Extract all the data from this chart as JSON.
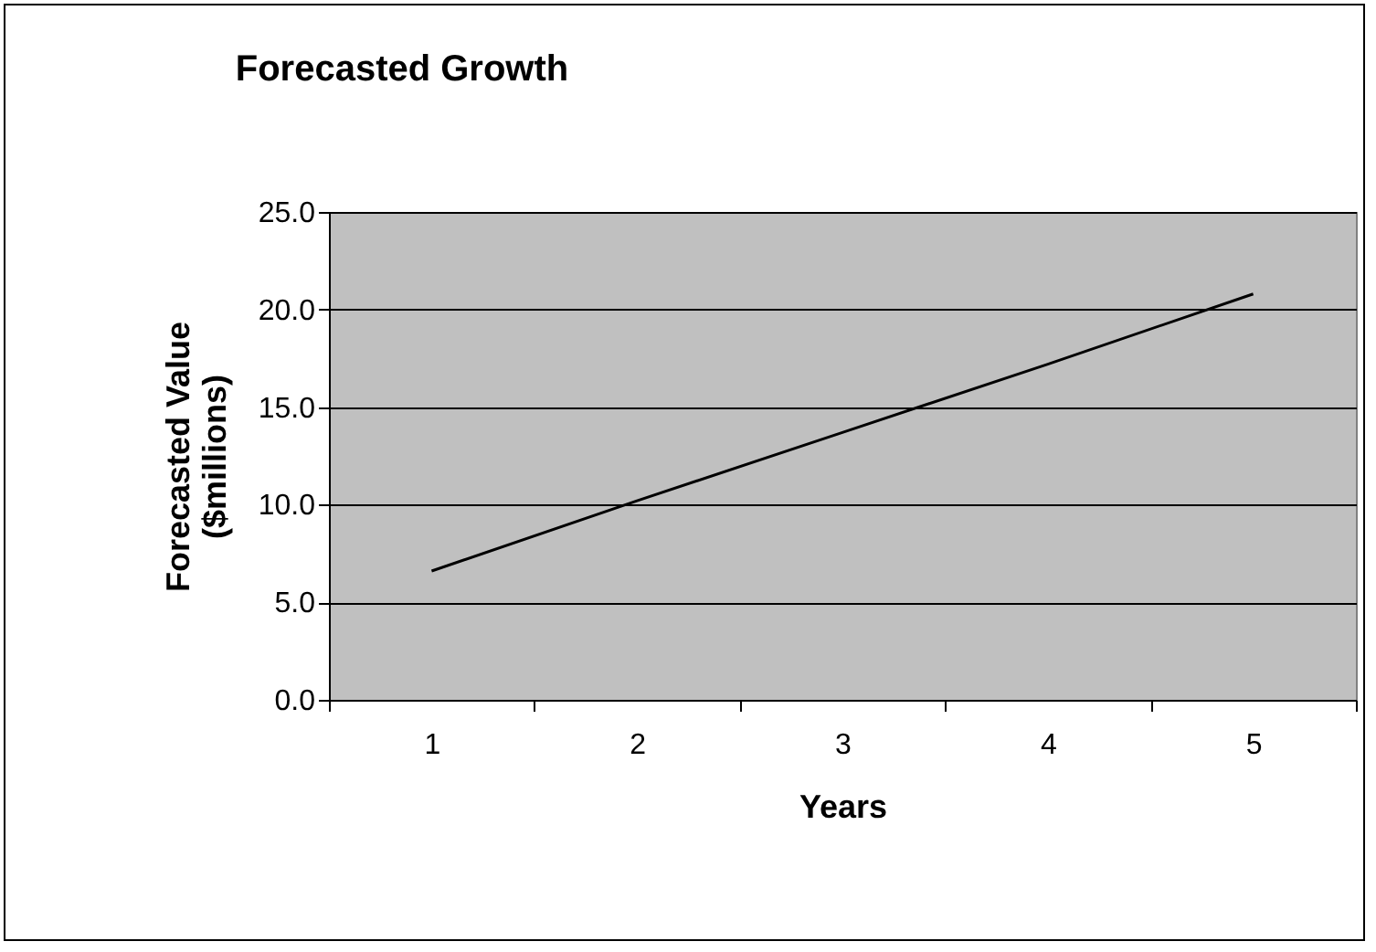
{
  "chart_data": {
    "type": "line",
    "title": "Forecasted Growth",
    "xlabel": "Years",
    "ylabel": "Forecasted Value ($millions)",
    "categories": [
      "1",
      "2",
      "3",
      "4",
      "5"
    ],
    "series": [
      {
        "color": "#000000",
        "values": [
          6.6,
          10.2,
          13.7,
          17.2,
          20.8
        ]
      }
    ],
    "ylim": [
      0,
      25
    ],
    "yticks": [
      {
        "value": 0,
        "label": "0.0"
      },
      {
        "value": 5,
        "label": "5.0"
      },
      {
        "value": 10,
        "label": "10.0"
      },
      {
        "value": 15,
        "label": "15.0"
      },
      {
        "value": 20,
        "label": "20.0"
      },
      {
        "value": 25,
        "label": "25.0"
      }
    ],
    "grid": "y",
    "legend": false,
    "marker": "none",
    "line_style": "solid"
  }
}
